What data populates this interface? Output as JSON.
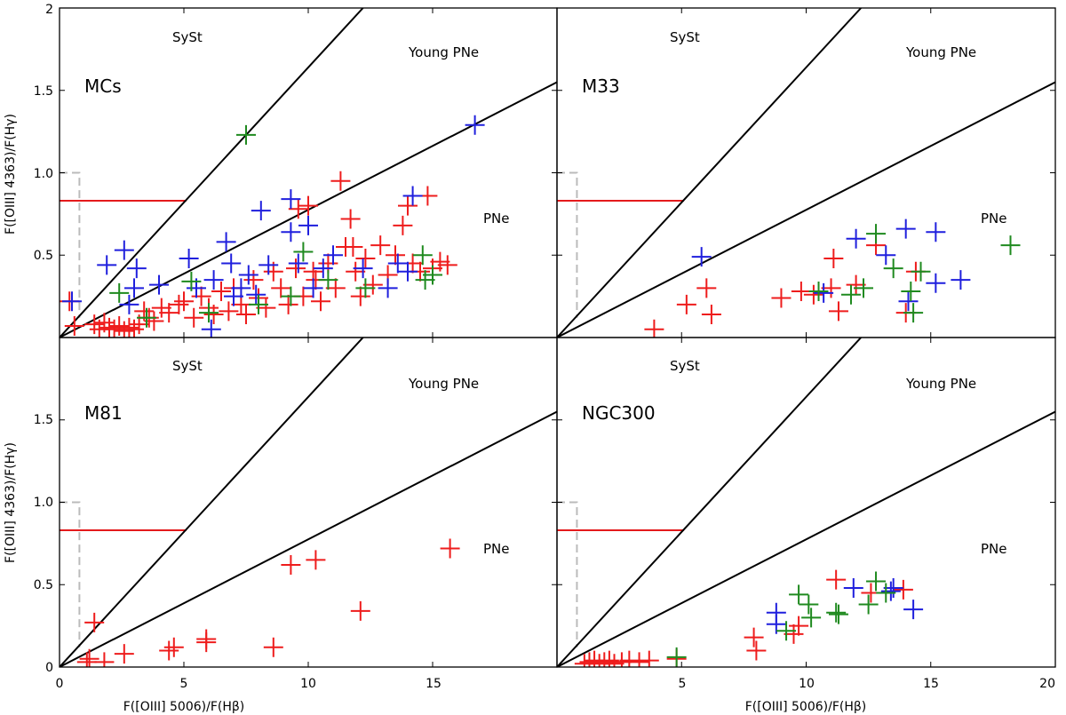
{
  "chart_data": {
    "type": "scatter",
    "colors": {
      "red": "#ee1c1c",
      "blue": "#1f1fdd",
      "green": "#1f8a1f"
    },
    "xlabel": "F([OIII] 5006)/F(Hβ)",
    "ylabel": "F([OIII] 4363)/F(Hγ)",
    "xlim": [
      0,
      20
    ],
    "ylim": [
      0,
      2
    ],
    "x_ticks": [
      "0",
      "5",
      "10",
      "15",
      "20"
    ],
    "y_ticks_top": [
      "0.5",
      "1.0",
      "1.5",
      "2"
    ],
    "y_ticks_bottom": [
      "0",
      "0.5",
      "1.0",
      "1.5"
    ],
    "region_labels": {
      "syst": "SySt",
      "young": "Young PNe",
      "pne": "PNe"
    },
    "boundaries": {
      "line1": {
        "x0": 0,
        "y0": 0,
        "x1": 12.2,
        "y1": 2.0
      },
      "line2": {
        "x0": 0,
        "y0": 0,
        "x1": 20,
        "y1": 1.55
      },
      "red_limit": {
        "x0": 0,
        "x1": 5.1,
        "y": 0.83
      },
      "gray_limit": {
        "x": 0.8,
        "y": 1.0
      }
    },
    "panels": [
      {
        "name": "MCs",
        "series": [
          {
            "name": "red",
            "points": [
              [
                0.4,
                0.22
              ],
              [
                0.6,
                0.07
              ],
              [
                1.4,
                0.08
              ],
              [
                1.6,
                0.05
              ],
              [
                1.8,
                0.09
              ],
              [
                2.0,
                0.06
              ],
              [
                2.2,
                0.05
              ],
              [
                2.4,
                0.07
              ],
              [
                2.6,
                0.04
              ],
              [
                2.8,
                0.06
              ],
              [
                3.0,
                0.05
              ],
              [
                3.2,
                0.08
              ],
              [
                3.4,
                0.16
              ],
              [
                3.6,
                0.12
              ],
              [
                3.8,
                0.1
              ],
              [
                4.1,
                0.18
              ],
              [
                4.4,
                0.15
              ],
              [
                4.8,
                0.2
              ],
              [
                5.0,
                0.22
              ],
              [
                5.4,
                0.12
              ],
              [
                5.7,
                0.25
              ],
              [
                6.0,
                0.18
              ],
              [
                6.2,
                0.14
              ],
              [
                6.5,
                0.28
              ],
              [
                6.8,
                0.16
              ],
              [
                7.0,
                0.3
              ],
              [
                7.3,
                0.2
              ],
              [
                7.5,
                0.14
              ],
              [
                7.8,
                0.35
              ],
              [
                8.0,
                0.24
              ],
              [
                8.3,
                0.18
              ],
              [
                8.6,
                0.4
              ],
              [
                8.9,
                0.3
              ],
              [
                9.2,
                0.2
              ],
              [
                9.5,
                0.42
              ],
              [
                9.8,
                0.25
              ],
              [
                10.0,
                0.8
              ],
              [
                10.3,
                0.35
              ],
              [
                10.5,
                0.22
              ],
              [
                10.8,
                0.45
              ],
              [
                11.1,
                0.3
              ],
              [
                11.3,
                0.95
              ],
              [
                11.5,
                0.55
              ],
              [
                11.7,
                0.72
              ],
              [
                11.9,
                0.4
              ],
              [
                12.1,
                0.25
              ],
              [
                12.3,
                0.48
              ],
              [
                12.6,
                0.32
              ],
              [
                12.9,
                0.56
              ],
              [
                13.2,
                0.38
              ],
              [
                13.5,
                0.5
              ],
              [
                13.8,
                0.68
              ],
              [
                14.0,
                0.8
              ],
              [
                14.2,
                0.45
              ],
              [
                14.5,
                0.4
              ],
              [
                14.8,
                0.86
              ],
              [
                15.0,
                0.42
              ],
              [
                15.3,
                0.46
              ],
              [
                15.6,
                0.44
              ],
              [
                9.6,
                0.78
              ],
              [
                10.2,
                0.4
              ],
              [
                11.8,
                0.55
              ]
            ]
          },
          {
            "name": "blue",
            "points": [
              [
                0.5,
                0.22
              ],
              [
                1.9,
                0.44
              ],
              [
                2.6,
                0.53
              ],
              [
                2.8,
                0.2
              ],
              [
                3.0,
                0.3
              ],
              [
                3.1,
                0.42
              ],
              [
                4.0,
                0.32
              ],
              [
                5.2,
                0.48
              ],
              [
                5.5,
                0.3
              ],
              [
                6.2,
                0.35
              ],
              [
                6.7,
                0.58
              ],
              [
                6.9,
                0.45
              ],
              [
                7.3,
                0.3
              ],
              [
                7.6,
                0.38
              ],
              [
                7.9,
                0.26
              ],
              [
                8.1,
                0.77
              ],
              [
                8.4,
                0.44
              ],
              [
                9.3,
                0.64
              ],
              [
                9.3,
                0.84
              ],
              [
                9.6,
                0.45
              ],
              [
                10.0,
                0.68
              ],
              [
                10.2,
                0.3
              ],
              [
                10.6,
                0.42
              ],
              [
                11.0,
                0.5
              ],
              [
                12.2,
                0.42
              ],
              [
                13.2,
                0.3
              ],
              [
                13.6,
                0.45
              ],
              [
                14.0,
                0.4
              ],
              [
                14.2,
                0.86
              ],
              [
                16.7,
                1.29
              ],
              [
                6.1,
                0.05
              ],
              [
                7.0,
                0.25
              ]
            ]
          },
          {
            "name": "green",
            "points": [
              [
                7.5,
                1.23
              ],
              [
                2.4,
                0.27
              ],
              [
                3.5,
                0.12
              ],
              [
                5.3,
                0.34
              ],
              [
                6.0,
                0.15
              ],
              [
                8.0,
                0.2
              ],
              [
                9.3,
                0.25
              ],
              [
                9.8,
                0.52
              ],
              [
                10.8,
                0.35
              ],
              [
                12.3,
                0.3
              ],
              [
                14.6,
                0.5
              ],
              [
                14.7,
                0.35
              ],
              [
                15.0,
                0.38
              ]
            ]
          }
        ]
      },
      {
        "name": "M33",
        "series": [
          {
            "name": "red",
            "points": [
              [
                3.9,
                0.05
              ],
              [
                5.2,
                0.2
              ],
              [
                6.0,
                0.3
              ],
              [
                6.2,
                0.14
              ],
              [
                9.0,
                0.24
              ],
              [
                9.8,
                0.28
              ],
              [
                10.3,
                0.26
              ],
              [
                11.0,
                0.3
              ],
              [
                11.1,
                0.48
              ],
              [
                11.3,
                0.16
              ],
              [
                12.0,
                0.32
              ],
              [
                12.8,
                0.56
              ],
              [
                14.0,
                0.15
              ],
              [
                14.4,
                0.4
              ]
            ]
          },
          {
            "name": "blue",
            "points": [
              [
                5.8,
                0.49
              ],
              [
                10.7,
                0.27
              ],
              [
                12.0,
                0.6
              ],
              [
                13.2,
                0.5
              ],
              [
                14.0,
                0.66
              ],
              [
                14.1,
                0.22
              ],
              [
                15.2,
                0.64
              ],
              [
                15.2,
                0.33
              ],
              [
                16.2,
                0.35
              ]
            ]
          },
          {
            "name": "green",
            "points": [
              [
                10.5,
                0.28
              ],
              [
                11.8,
                0.26
              ],
              [
                12.3,
                0.3
              ],
              [
                12.8,
                0.63
              ],
              [
                13.5,
                0.42
              ],
              [
                14.3,
                0.15
              ],
              [
                14.2,
                0.28
              ],
              [
                14.6,
                0.4
              ],
              [
                18.2,
                0.56
              ]
            ]
          }
        ]
      },
      {
        "name": "M81",
        "series": [
          {
            "name": "red",
            "points": [
              [
                1.1,
                0.03
              ],
              [
                1.2,
                0.05
              ],
              [
                1.4,
                0.27
              ],
              [
                1.8,
                0.03
              ],
              [
                2.6,
                0.08
              ],
              [
                4.4,
                0.1
              ],
              [
                4.6,
                0.12
              ],
              [
                5.9,
                0.17
              ],
              [
                5.9,
                0.15
              ],
              [
                8.6,
                0.12
              ],
              [
                9.3,
                0.62
              ],
              [
                10.3,
                0.65
              ],
              [
                12.1,
                0.34
              ],
              [
                15.7,
                0.72
              ]
            ]
          }
        ]
      },
      {
        "name": "NGC300",
        "series": [
          {
            "name": "red",
            "points": [
              [
                1.1,
                0.02
              ],
              [
                1.3,
                0.03
              ],
              [
                1.5,
                0.04
              ],
              [
                1.7,
                0.02
              ],
              [
                1.9,
                0.03
              ],
              [
                2.1,
                0.04
              ],
              [
                2.3,
                0.02
              ],
              [
                2.6,
                0.03
              ],
              [
                2.9,
                0.04
              ],
              [
                3.3,
                0.03
              ],
              [
                3.7,
                0.04
              ],
              [
                4.8,
                0.05
              ],
              [
                7.9,
                0.18
              ],
              [
                8.0,
                0.1
              ],
              [
                9.5,
                0.2
              ],
              [
                9.7,
                0.25
              ],
              [
                11.2,
                0.53
              ],
              [
                12.6,
                0.45
              ],
              [
                13.9,
                0.47
              ]
            ]
          },
          {
            "name": "blue",
            "points": [
              [
                8.8,
                0.33
              ],
              [
                8.8,
                0.26
              ],
              [
                11.9,
                0.48
              ],
              [
                13.4,
                0.46
              ],
              [
                13.5,
                0.48
              ],
              [
                14.3,
                0.35
              ]
            ]
          },
          {
            "name": "green",
            "points": [
              [
                4.8,
                0.06
              ],
              [
                9.2,
                0.22
              ],
              [
                9.7,
                0.44
              ],
              [
                10.1,
                0.38
              ],
              [
                10.2,
                0.3
              ],
              [
                11.2,
                0.33
              ],
              [
                11.3,
                0.32
              ],
              [
                12.5,
                0.38
              ],
              [
                12.8,
                0.52
              ],
              [
                13.2,
                0.45
              ]
            ]
          }
        ]
      }
    ]
  }
}
